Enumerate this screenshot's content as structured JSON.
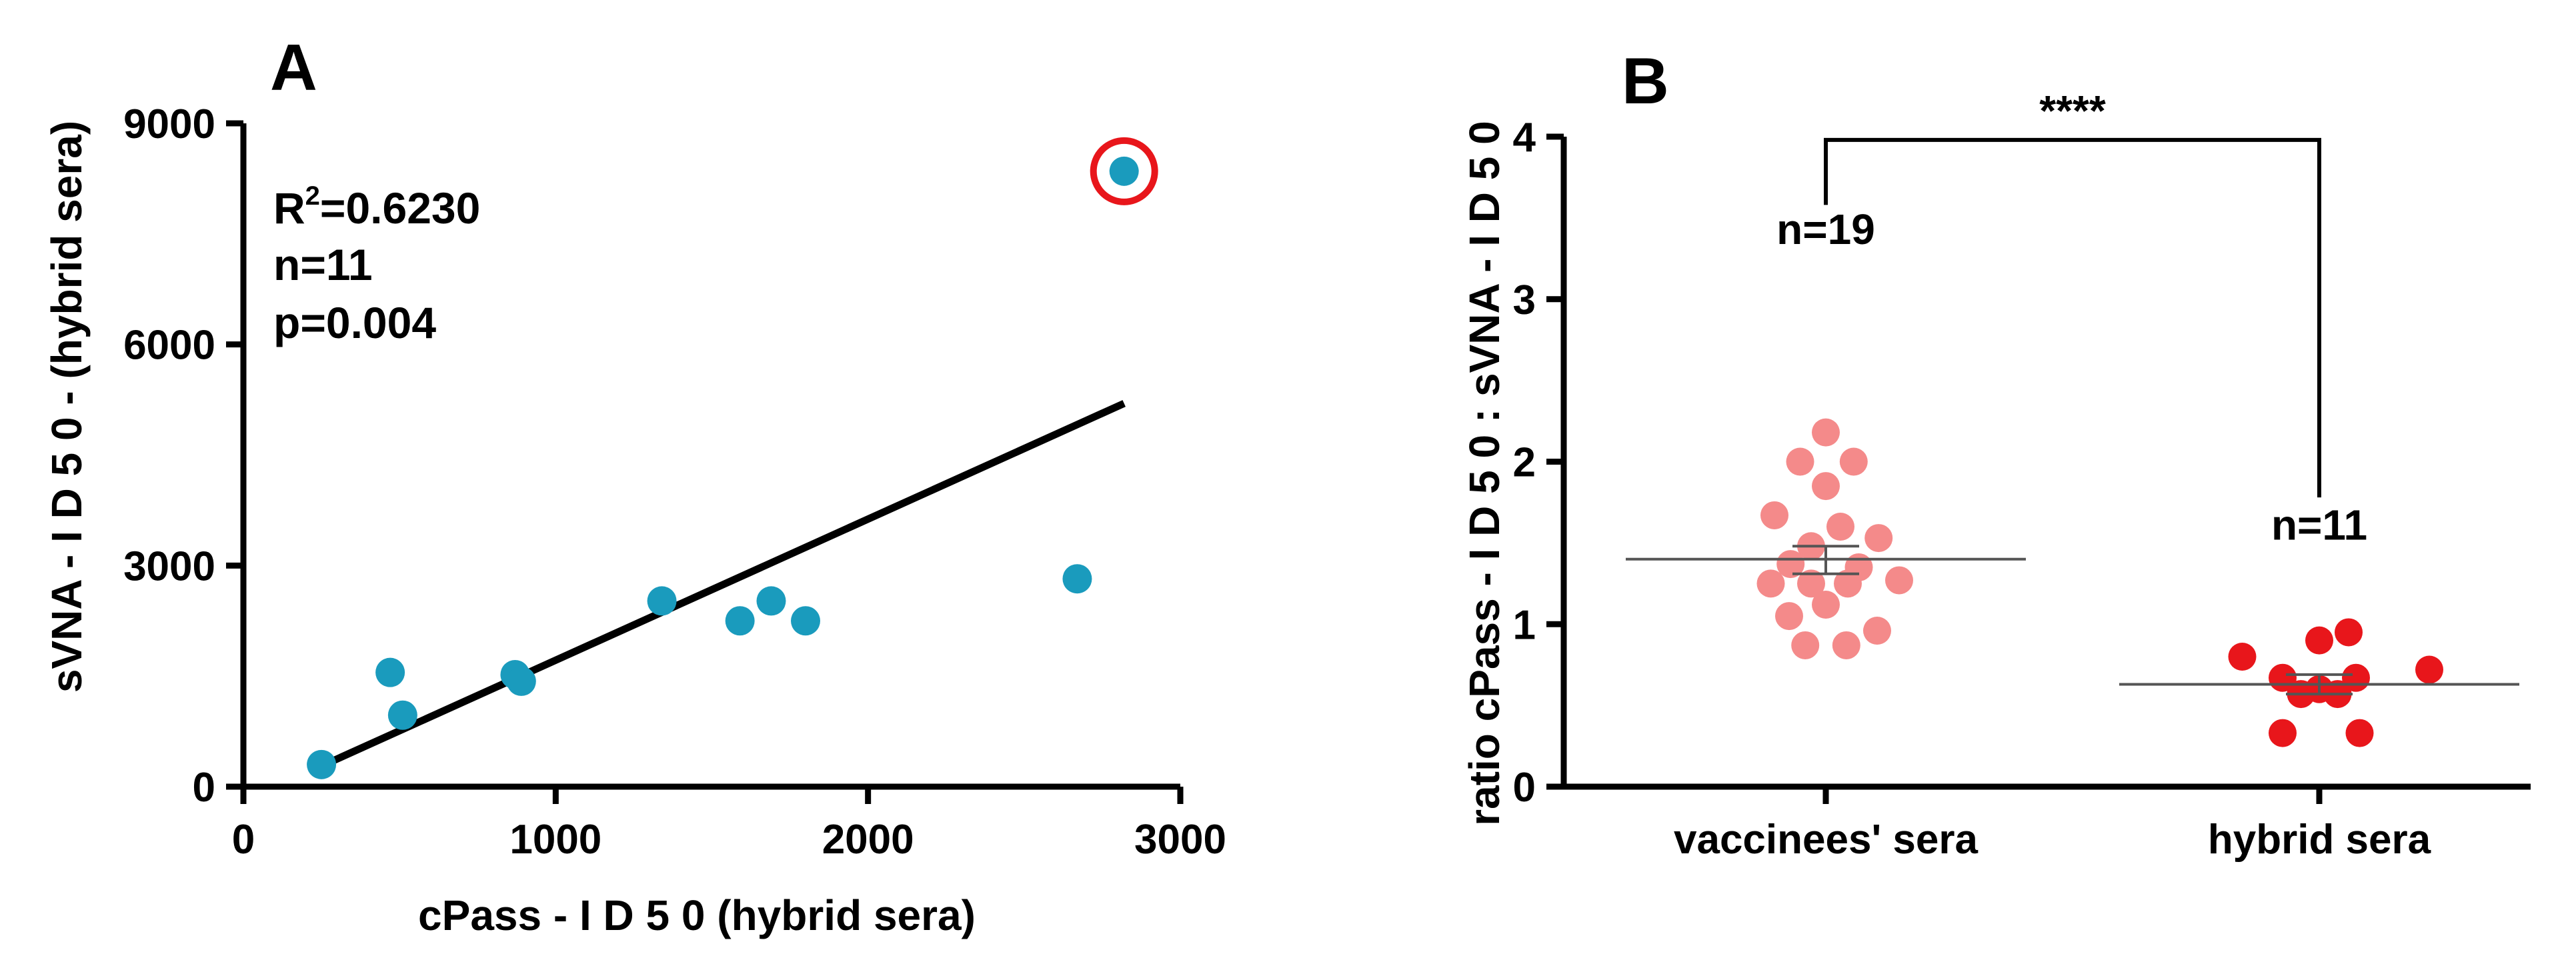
{
  "chart_data": [
    {
      "panel": "A",
      "type": "scatter",
      "title": "",
      "xlabel": "cPass - I D 5 0 (hybrid sera)",
      "ylabel": "sVNA - I D 5 0 - (hybrid sera)",
      "xlim": [
        0,
        3000
      ],
      "ylim": [
        0,
        9000
      ],
      "xticks": [
        "0",
        "1000",
        "2000",
        "3000"
      ],
      "yticks": [
        "0",
        "3000",
        "6000",
        "9000"
      ],
      "series": [
        {
          "name": "hybrid sera",
          "color": "#1a9bbd",
          "points": [
            {
              "x": 250,
              "y": 300
            },
            {
              "x": 470,
              "y": 1550
            },
            {
              "x": 510,
              "y": 970
            },
            {
              "x": 870,
              "y": 1520
            },
            {
              "x": 890,
              "y": 1430
            },
            {
              "x": 1340,
              "y": 2520
            },
            {
              "x": 1590,
              "y": 2250
            },
            {
              "x": 1690,
              "y": 2520
            },
            {
              "x": 1800,
              "y": 2250
            },
            {
              "x": 2670,
              "y": 2820
            },
            {
              "x": 2820,
              "y": 8350
            }
          ]
        }
      ],
      "outlier_highlight": {
        "x": 2820,
        "y": 8350,
        "color": "#e8161b"
      },
      "regression_line": {
        "x1": 250,
        "y1": 280,
        "x2": 2820,
        "y2": 5200,
        "color": "#000000"
      },
      "stats": {
        "r2_base": "R",
        "r2_sup": "2",
        "r2_value": "=0.6230",
        "n": "n=11",
        "p": "p=0.004"
      }
    },
    {
      "panel": "B",
      "type": "scatter",
      "title": "",
      "xlabel": "",
      "ylabel": "ratio cPass - I D 5 0 : sVNA - I D 5 0",
      "ylim": [
        0,
        4
      ],
      "yticks": [
        "0",
        "1",
        "2",
        "3",
        "4"
      ],
      "categories": [
        "vaccinees' sera",
        "hybrid sera"
      ],
      "series": [
        {
          "name": "vaccinees' sera",
          "color": "#f48a8a",
          "mean": 1.4,
          "sem_low": 1.31,
          "sem_high": 1.48,
          "n_label": "n=19",
          "points": [
            {
              "dx": 0.0,
              "y": 2.18
            },
            {
              "dx": -0.35,
              "y": 2.0
            },
            {
              "dx": 0.38,
              "y": 2.0
            },
            {
              "dx": 0.0,
              "y": 1.85
            },
            {
              "dx": -0.7,
              "y": 1.67
            },
            {
              "dx": 0.2,
              "y": 1.6
            },
            {
              "dx": 0.72,
              "y": 1.53
            },
            {
              "dx": -0.2,
              "y": 1.48
            },
            {
              "dx": -0.48,
              "y": 1.37
            },
            {
              "dx": 0.45,
              "y": 1.35
            },
            {
              "dx": -0.75,
              "y": 1.25
            },
            {
              "dx": -0.2,
              "y": 1.25
            },
            {
              "dx": 0.3,
              "y": 1.25
            },
            {
              "dx": 1.0,
              "y": 1.27
            },
            {
              "dx": 0.0,
              "y": 1.12
            },
            {
              "dx": -0.5,
              "y": 1.05
            },
            {
              "dx": 0.7,
              "y": 0.96
            },
            {
              "dx": -0.28,
              "y": 0.87
            },
            {
              "dx": 0.28,
              "y": 0.87
            }
          ]
        },
        {
          "name": "hybrid sera",
          "color": "#e8161b",
          "mean": 0.63,
          "sem_low": 0.57,
          "sem_high": 0.69,
          "n_label": "n=11",
          "points": [
            {
              "dx": -1.05,
              "y": 0.8
            },
            {
              "dx": 0.0,
              "y": 0.9
            },
            {
              "dx": 0.4,
              "y": 0.95
            },
            {
              "dx": 1.5,
              "y": 0.72
            },
            {
              "dx": -0.5,
              "y": 0.67
            },
            {
              "dx": 0.5,
              "y": 0.67
            },
            {
              "dx": -0.25,
              "y": 0.57
            },
            {
              "dx": 0.25,
              "y": 0.57
            },
            {
              "dx": -0.5,
              "y": 0.33
            },
            {
              "dx": 0.55,
              "y": 0.33
            },
            {
              "dx": 0.0,
              "y": 0.6
            }
          ]
        }
      ],
      "significance": "****"
    }
  ]
}
